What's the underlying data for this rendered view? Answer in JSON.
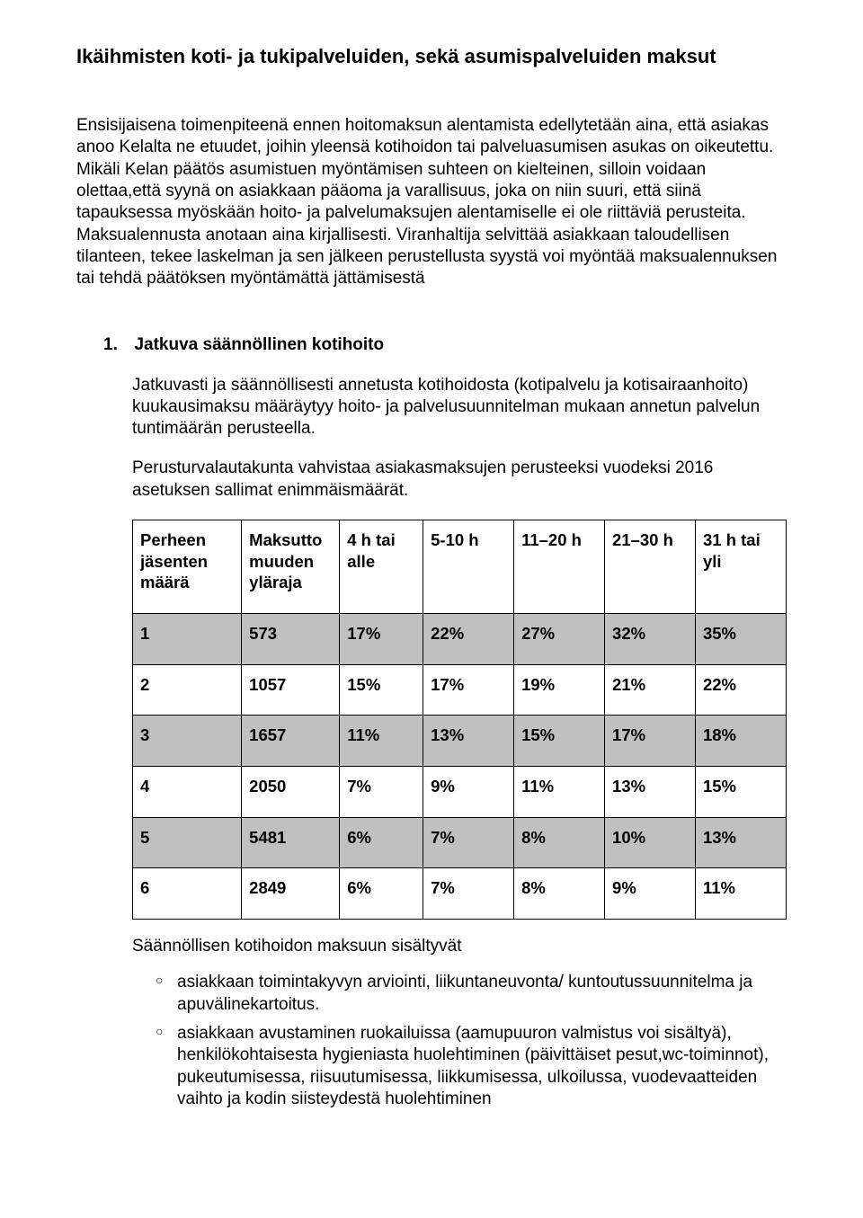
{
  "doc_title": "Ikäihmisten koti- ja tukipalveluiden, sekä asumispalveluiden maksut",
  "intro_paragraph": "Ensisijaisena toimenpiteenä ennen hoitomaksun alentamista edellytetään aina, että asiakas anoo Kelalta ne etuudet, joihin yleensä kotihoidon tai palveluasumisen asukas on oikeutettu. Mikäli Kelan päätös asumistuen myöntämisen suhteen on kielteinen, silloin voidaan olettaa,että syynä on asiakkaan pääoma ja varallisuus, joka on niin suuri, että siinä tapauksessa myöskään hoito- ja palvelumaksujen alentamiselle ei ole riittäviä perusteita. Maksualennusta anotaan aina kirjallisesti. Viranhaltija selvittää asiakkaan taloudellisen tilanteen, tekee laskelman ja sen jälkeen perustellusta syystä voi myöntää maksualennuksen tai tehdä päätöksen myöntämättä jättämisestä",
  "section1": {
    "number": "1.",
    "title": "Jatkuva säännöllinen kotihoito",
    "p1": "Jatkuvasti ja säännöllisesti annetusta kotihoidosta (kotipalvelu ja kotisairaanhoito) kuukausimaksu määräytyy hoito- ja palvelusuunnitelman mukaan annetun palvelun tuntimäärän perusteella.",
    "p2": "Perusturvalautakunta vahvistaa asiakasmaksujen perusteeksi vuodeksi 2016 asetuksen sallimat enimmäismäärät."
  },
  "fee_table": {
    "columns": [
      "Perheen jäsenten määrä",
      "Maksutto muuden yläraja",
      "4 h tai alle",
      "5-10 h",
      "11–20 h",
      "21–30 h",
      "31 h tai yli"
    ],
    "rows": [
      {
        "shaded": true,
        "cells": [
          "1",
          "573",
          "17%",
          "22%",
          "27%",
          "32%",
          "35%"
        ]
      },
      {
        "shaded": false,
        "cells": [
          "2",
          "1057",
          "15%",
          "17%",
          "19%",
          "21%",
          "22%"
        ]
      },
      {
        "shaded": true,
        "cells": [
          "3",
          "1657",
          "11%",
          "13%",
          "15%",
          "17%",
          "18%"
        ]
      },
      {
        "shaded": false,
        "cells": [
          "4",
          "2050",
          "7%",
          "9%",
          "11%",
          "13%",
          "15%"
        ]
      },
      {
        "shaded": true,
        "cells": [
          "5",
          "5481",
          "6%",
          "7%",
          "8%",
          "10%",
          "13%"
        ]
      },
      {
        "shaded": false,
        "cells": [
          "6",
          "2849",
          "6%",
          "7%",
          "8%",
          "9%",
          "11%"
        ]
      }
    ],
    "col_widths_pct": [
      15.0,
      13.5,
      11.5,
      12.5,
      12.5,
      12.5,
      12.5
    ],
    "shaded_bg": "#c0c0c0",
    "border_color": "#000000",
    "font_size_pt": 14,
    "font_weight": "bold"
  },
  "after_table_line": "Säännöllisen kotihoidon maksuun sisältyvät",
  "bullets": [
    "asiakkaan toimintakyvyn arviointi, liikuntaneuvonta/ kuntoutussuunnitelma ja apuvälinekartoitus.",
    "asiakkaan avustaminen ruokailuissa (aamupuuron valmistus voi sisältyä), henkilökohtaisesta hygieniasta huolehtiminen (päivittäiset pesut,wc-toiminnot), pukeutumisessa, riisuutumisessa, liikkumisessa, ulkoilussa, vuodevaatteiden vaihto ja kodin siisteydestä huolehtiminen"
  ],
  "colors": {
    "text": "#000000",
    "background": "#ffffff"
  },
  "typography": {
    "body_fontsize_pt": 14,
    "title_fontsize_pt": 16,
    "family": "Arial"
  }
}
